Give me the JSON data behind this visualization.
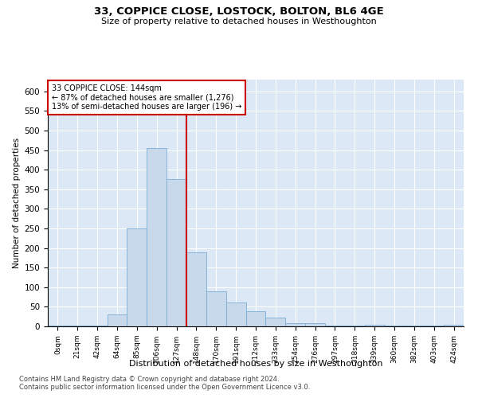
{
  "title": "33, COPPICE CLOSE, LOSTOCK, BOLTON, BL6 4GE",
  "subtitle": "Size of property relative to detached houses in Westhoughton",
  "xlabel": "Distribution of detached houses by size in Westhoughton",
  "ylabel": "Number of detached properties",
  "annotation_title": "33 COPPICE CLOSE: 144sqm",
  "annotation_line1": "← 87% of detached houses are smaller (1,276)",
  "annotation_line2": "13% of semi-detached houses are larger (196) →",
  "property_bin_index": 7,
  "footer_line1": "Contains HM Land Registry data © Crown copyright and database right 2024.",
  "footer_line2": "Contains public sector information licensed under the Open Government Licence v3.0.",
  "bar_color": "#c9d9ec",
  "bar_edge_color": "#7aadd4",
  "marker_line_color": "#cc0000",
  "annotation_box_color": "#cc0000",
  "background_color": "#ffffff",
  "plot_bg_color": "#dce8f5",
  "grid_color": "#ffffff",
  "categories": [
    "0sqm",
    "21sqm",
    "42sqm",
    "64sqm",
    "85sqm",
    "106sqm",
    "127sqm",
    "148sqm",
    "170sqm",
    "191sqm",
    "212sqm",
    "233sqm",
    "254sqm",
    "276sqm",
    "297sqm",
    "318sqm",
    "339sqm",
    "360sqm",
    "382sqm",
    "403sqm",
    "424sqm"
  ],
  "values": [
    2,
    2,
    2,
    30,
    250,
    455,
    375,
    190,
    90,
    60,
    38,
    22,
    8,
    8,
    2,
    2,
    4,
    2,
    2,
    2,
    4
  ],
  "ylim": [
    0,
    630
  ],
  "yticks": [
    0,
    50,
    100,
    150,
    200,
    250,
    300,
    350,
    400,
    450,
    500,
    550,
    600
  ]
}
